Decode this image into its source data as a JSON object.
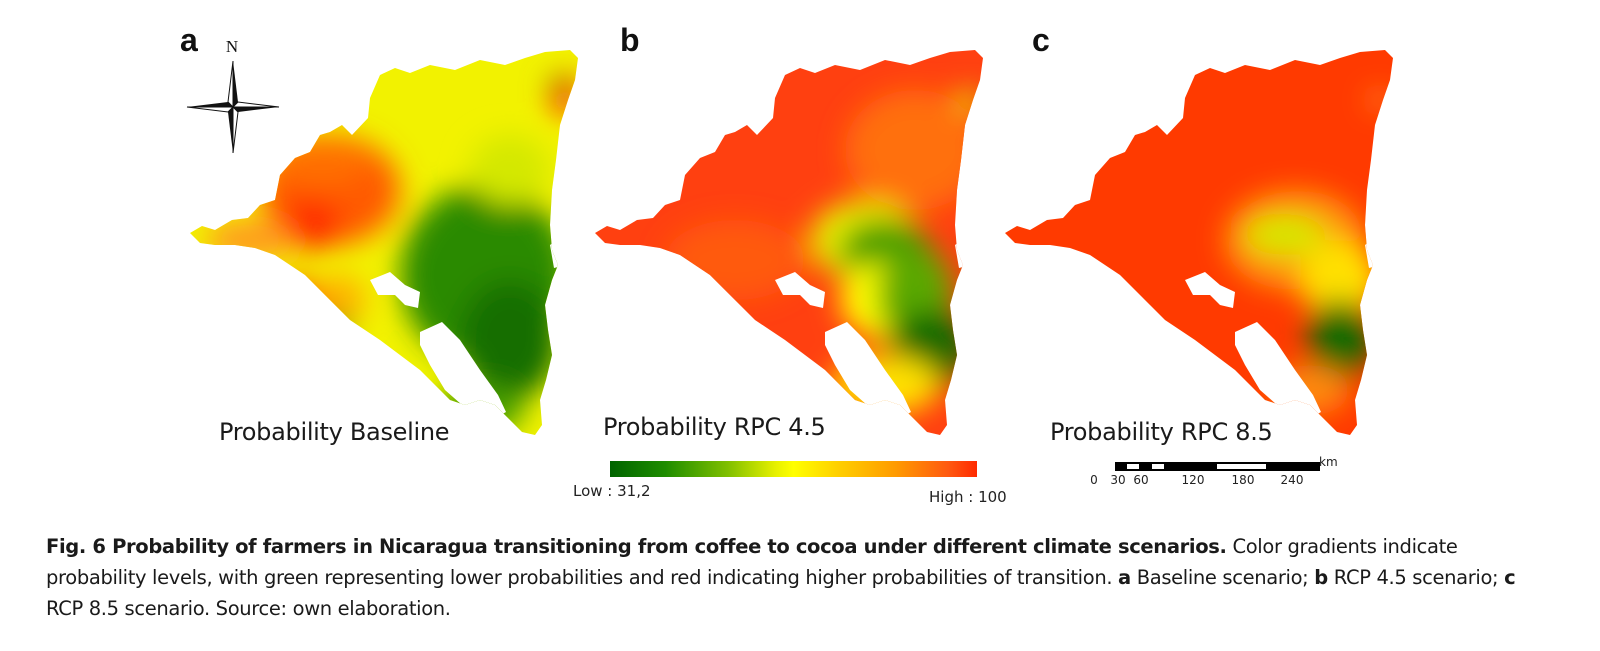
{
  "figure": {
    "panels": [
      {
        "letter": "a",
        "title": "Probability Baseline",
        "scenario": "Baseline"
      },
      {
        "letter": "b",
        "title": "Probability RPC 4.5",
        "scenario": "RCP 4.5"
      },
      {
        "letter": "c",
        "title": "Probability RPC 8.5",
        "scenario": "RCP 8.5"
      }
    ],
    "compass": {
      "label": "N",
      "icon": "north-arrow-compass-icon"
    },
    "legend": {
      "low_label": "Low : 31,2",
      "high_label": "High : 100",
      "low_value": 31.2,
      "high_value": 100,
      "colors": [
        "#006400",
        "#7fbf00",
        "#ffff00",
        "#ff9a00",
        "#ff2a00"
      ]
    },
    "scale_bar": {
      "unit": "km",
      "ticks": [
        "0",
        "30",
        "60",
        "120",
        "180",
        "240"
      ]
    },
    "caption": {
      "bold_title": "Fig. 6 Probability of farmers in Nicaragua transitioning from coffee to cocoa under different climate scenarios.",
      "text_1": " Color gradients indicate probability levels, with green representing lower probabilities and red indicating higher probabilities of transition. ",
      "a_label": "a",
      "a_text": " Baseline scenario; ",
      "b_label": "b",
      "b_text": " RCP 4.5 scenario; ",
      "c_label": "c",
      "c_text": " RCP 8.5 scenario. Source: own elaboration."
    }
  }
}
